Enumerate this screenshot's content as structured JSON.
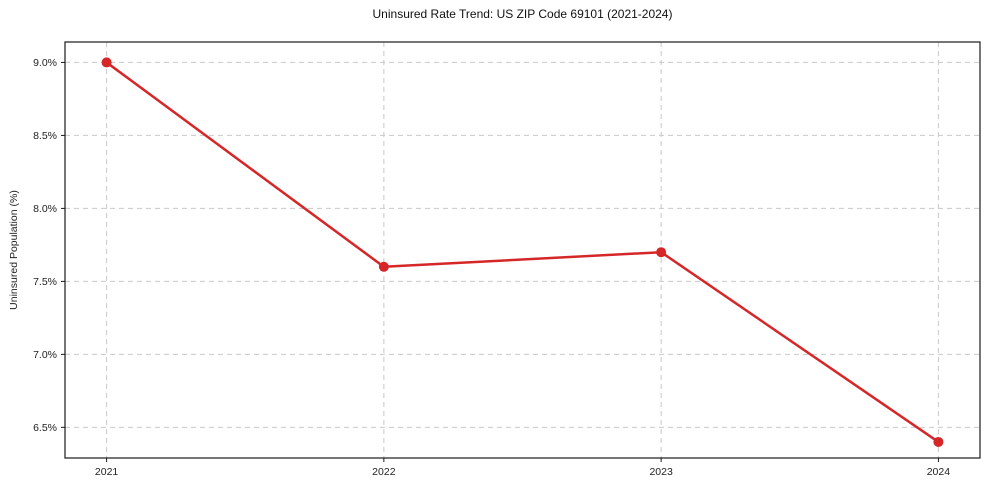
{
  "page": {
    "background": "#ffffff"
  },
  "chart_data": {
    "type": "line",
    "title": "Uninsured Rate Trend: US ZIP Code 69101 (2021-2024)",
    "xlabel": "",
    "ylabel": "Uninsured Population (%)",
    "x": [
      2021,
      2022,
      2023,
      2024
    ],
    "xtick_labels": [
      "2021",
      "2022",
      "2023",
      "2024"
    ],
    "series": [
      {
        "name": "Uninsured rate",
        "values": [
          9.0,
          7.6,
          7.7,
          6.4
        ]
      }
    ],
    "yticks": [
      {
        "value": 6.5,
        "label": "6.5%"
      },
      {
        "value": 7.0,
        "label": "7.0%"
      },
      {
        "value": 7.5,
        "label": "7.5%"
      },
      {
        "value": 8.0,
        "label": "8.0%"
      },
      {
        "value": 8.5,
        "label": "8.5%"
      },
      {
        "value": 9.0,
        "label": "9.0%"
      }
    ],
    "xlim": [
      2020.85,
      2024.15
    ],
    "ylim": [
      6.29,
      9.14
    ],
    "grid": true,
    "grid_style": "dashed",
    "legend": "none",
    "line_color": "#d62728",
    "marker": "circle"
  }
}
